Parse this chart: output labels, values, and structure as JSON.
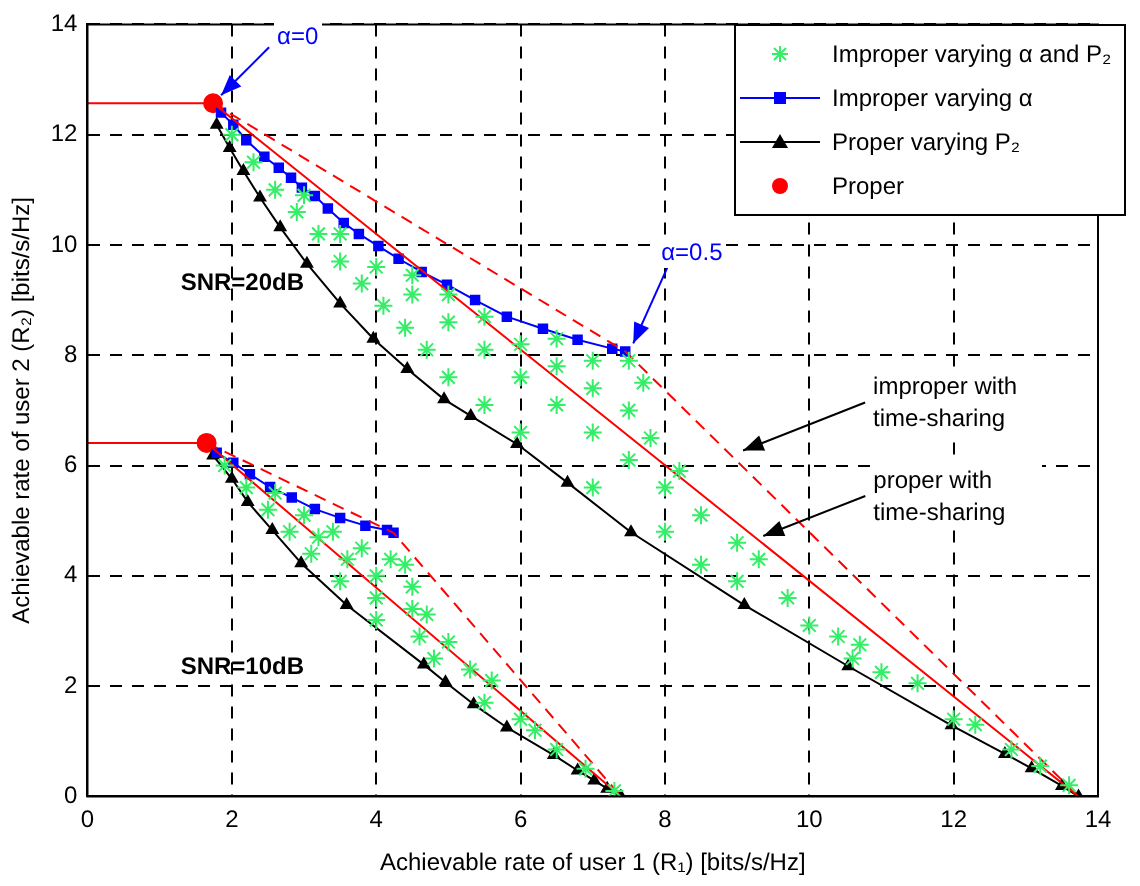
{
  "chart_data": {
    "type": "line",
    "xlabel": "Achievable rate of user 1 (R₁) [bits/s/Hz]",
    "ylabel": "Achievable rate of user 2 (R₂) [bits/s/Hz]",
    "xlim": [
      0,
      14
    ],
    "xticks": [
      0,
      2,
      4,
      6,
      8,
      10,
      12,
      14
    ],
    "ylim": [
      0,
      14
    ],
    "yticks": [
      0,
      2,
      4,
      6,
      8,
      10,
      12,
      14
    ],
    "grid": true,
    "legend": "top right",
    "annotations": [
      {
        "text": "α=0",
        "x": 1.74,
        "y": 12.57
      },
      {
        "text": "α=0.5",
        "x": 7.45,
        "y": 8.07
      },
      "SNR=20dB",
      "SNR=10dB",
      {
        "text": "improper with time-sharing",
        "x": 9.0,
        "y": 6.2
      },
      {
        "text": "proper with time-sharing",
        "x": 9.28,
        "y": 4.65
      }
    ],
    "series": [
      {
        "name": "Improper varying α and P₂",
        "type": "scatter",
        "marker": "cross",
        "color": "#33ee66",
        "x": [
          2.0,
          2.3,
          2.6,
          2.9,
          3.2,
          3.5,
          3.8,
          4.1,
          4.4,
          4.7,
          5.0,
          5.5,
          6.0,
          3.0,
          3.5,
          4.0,
          4.5,
          5.0,
          5.5,
          6.0,
          6.5,
          7.0,
          7.5,
          8.0,
          8.5,
          9.0,
          9.3,
          4.5,
          5.0,
          5.5,
          6.0,
          6.5,
          7.0,
          7.5,
          7.8,
          8.2,
          6.5,
          7.0,
          7.5,
          7.7,
          7.0,
          8.0,
          8.5,
          9.0,
          9.7,
          10.0,
          10.4,
          10.7,
          10.6,
          11.0,
          11.5,
          12.0,
          12.3,
          12.8,
          13.2,
          13.6,
          1.9,
          2.2,
          2.5,
          2.8,
          3.1,
          2.6,
          3.0,
          3.4,
          3.8,
          4.2,
          4.4,
          3.2,
          3.6,
          4.0,
          4.5,
          3.5,
          4.0,
          4.5,
          4.7,
          4.0,
          4.6,
          5.0,
          4.8,
          5.3,
          5.6,
          5.5,
          6.0,
          6.2,
          6.5,
          6.9,
          7.3
        ],
        "values": [
          12.0,
          11.5,
          11.0,
          10.6,
          10.2,
          9.7,
          9.3,
          8.9,
          8.5,
          8.1,
          7.6,
          7.1,
          6.6,
          10.9,
          10.2,
          9.6,
          9.1,
          8.6,
          8.1,
          7.6,
          7.1,
          6.6,
          6.1,
          5.6,
          5.1,
          4.6,
          4.3,
          9.45,
          9.1,
          8.7,
          8.2,
          7.8,
          7.4,
          7.0,
          6.5,
          5.9,
          8.3,
          7.9,
          7.9,
          7.5,
          5.6,
          4.8,
          4.2,
          3.9,
          3.6,
          3.1,
          2.9,
          2.75,
          2.5,
          2.25,
          2.05,
          1.4,
          1.3,
          0.85,
          0.55,
          0.2,
          6.0,
          5.6,
          5.2,
          4.8,
          4.4,
          5.5,
          5.1,
          4.8,
          4.5,
          4.3,
          4.2,
          4.7,
          4.3,
          4.0,
          3.8,
          3.9,
          3.6,
          3.4,
          3.3,
          3.2,
          2.9,
          2.8,
          2.5,
          2.3,
          2.1,
          1.7,
          1.4,
          1.2,
          0.85,
          0.5,
          0.1
        ]
      },
      {
        "line_style": "solid",
        "color": "#ff0000",
        "x": [
          0,
          1.74,
          13.73
        ],
        "values": [
          12.57,
          12.57,
          0
        ]
      },
      {
        "line_style": "solid",
        "color": "#ff0000",
        "x": [
          0,
          1.65,
          7.39
        ],
        "values": [
          6.41,
          6.41,
          0
        ]
      },
      {
        "line_style": "dashed",
        "color": "#ff0000",
        "x": [
          1.74,
          7.45,
          13.73
        ],
        "values": [
          12.57,
          8.07,
          0
        ]
      },
      {
        "line_style": "dashed",
        "color": "#ff0000",
        "x": [
          1.65,
          4.24,
          7.39
        ],
        "values": [
          6.41,
          4.78,
          0
        ]
      },
      {
        "name": "Improper varying α",
        "marker": "square",
        "color": "#0000ff",
        "x": [
          1.85,
          2.02,
          2.2,
          2.45,
          2.65,
          2.82,
          2.97,
          3.15,
          3.33,
          3.55,
          3.76,
          4.03,
          4.31,
          4.63,
          4.98,
          5.37,
          5.81,
          6.31,
          6.79,
          7.27,
          7.45
        ],
        "values": [
          12.4,
          12.18,
          11.9,
          11.6,
          11.4,
          11.22,
          11.04,
          10.89,
          10.66,
          10.4,
          10.2,
          9.98,
          9.75,
          9.51,
          9.28,
          9.0,
          8.7,
          8.48,
          8.28,
          8.12,
          8.07
        ]
      },
      {
        "marker": "square",
        "color": "#0000ff",
        "x": [
          1.79,
          2.02,
          2.25,
          2.53,
          2.83,
          3.15,
          3.5,
          3.85,
          4.15,
          4.24
        ],
        "values": [
          6.23,
          6.05,
          5.84,
          5.61,
          5.42,
          5.21,
          5.05,
          4.91,
          4.83,
          4.78
        ]
      },
      {
        "name": "Proper varying P₂",
        "marker": "triangle",
        "color": "#000000",
        "x": [
          1.79,
          1.97,
          2.16,
          2.39,
          2.67,
          3.04,
          3.5,
          3.96,
          4.43,
          4.94,
          5.31,
          5.95,
          6.65,
          7.53,
          9.1,
          10.54,
          11.97,
          12.71,
          13.08,
          13.5,
          13.73
        ],
        "values": [
          12.18,
          11.76,
          11.34,
          10.86,
          10.32,
          9.66,
          8.94,
          8.3,
          7.75,
          7.2,
          6.9,
          6.39,
          5.69,
          4.79,
          3.47,
          2.36,
          1.29,
          0.77,
          0.51,
          0.19,
          0
        ]
      },
      {
        "marker": "triangle",
        "color": "#000000",
        "x": [
          1.74,
          2.0,
          2.22,
          2.56,
          2.96,
          3.59,
          4.66,
          4.96,
          5.35,
          5.81,
          6.46,
          6.79,
          7.02,
          7.2,
          7.39
        ],
        "values": [
          6.18,
          5.76,
          5.34,
          4.83,
          4.23,
          3.47,
          2.39,
          2.07,
          1.67,
          1.25,
          0.75,
          0.47,
          0.29,
          0.14,
          0
        ]
      },
      {
        "name": "Proper",
        "type": "scatter",
        "marker": "circle",
        "color": "#ff0000",
        "x": [
          1.74,
          1.65
        ],
        "values": [
          12.57,
          6.41
        ]
      }
    ]
  }
}
